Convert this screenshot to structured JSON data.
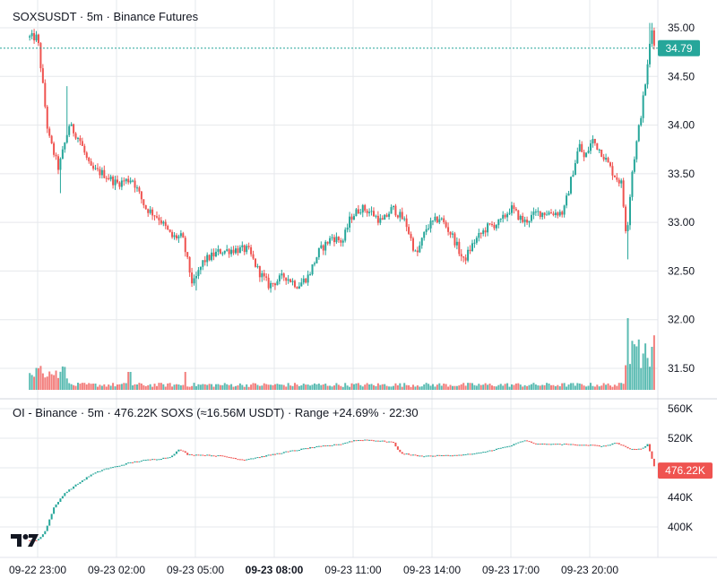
{
  "colors": {
    "up": "#26a69a",
    "down": "#ef5350",
    "grid": "#e6e8ec",
    "text": "#131722",
    "price_label_bg": "#26a69a",
    "oi_label_bg": "#ef5350"
  },
  "main_pane": {
    "legend": "SOXSUSDT · 5m · Binance Futures",
    "current_price_label": "34.79"
  },
  "oi_pane": {
    "legend": "OI - Binance · 5m · 476.22K SOXS (≈16.56M USDT) · Range +24.69% · 22:30",
    "current_label": "476.22K"
  },
  "logo": {
    "icon": "tradingview-logo-icon",
    "text": "TV"
  },
  "chart_data": [
    {
      "type": "candlestick",
      "title": "SOXSUSDT · 5m · Binance Futures",
      "y_ticks": [
        "35.00",
        "34.50",
        "34.00",
        "33.50",
        "33.00",
        "32.50",
        "32.00",
        "31.50"
      ],
      "ylim": [
        31.25,
        35.2
      ],
      "x_ticks": [
        "09-22 23:00",
        "09-23 02:00",
        "09-23 05:00",
        "09-23 08:00",
        "09-23 11:00",
        "09-23 14:00",
        "09-23 17:00",
        "09-23 20:00"
      ],
      "x_tick_hours": [
        0,
        3,
        6,
        9,
        12,
        15,
        18,
        21
      ],
      "x_range_hours": [
        -0.3,
        24.5
      ],
      "last_price": 34.79,
      "close_path": [
        {
          "t": 0.0,
          "p": 34.9
        },
        {
          "t": 0.4,
          "p": 33.9
        },
        {
          "t": 0.8,
          "p": 33.55
        },
        {
          "t": 1.2,
          "p": 34.0
        },
        {
          "t": 1.6,
          "p": 33.85
        },
        {
          "t": 2.0,
          "p": 33.55
        },
        {
          "t": 2.5,
          "p": 33.5
        },
        {
          "t": 3.0,
          "p": 33.4
        },
        {
          "t": 3.6,
          "p": 33.45
        },
        {
          "t": 4.1,
          "p": 33.15
        },
        {
          "t": 4.6,
          "p": 33.05
        },
        {
          "t": 5.1,
          "p": 32.85
        },
        {
          "t": 5.5,
          "p": 32.85
        },
        {
          "t": 5.9,
          "p": 32.35
        },
        {
          "t": 6.3,
          "p": 32.6
        },
        {
          "t": 6.9,
          "p": 32.7
        },
        {
          "t": 7.4,
          "p": 32.72
        },
        {
          "t": 8.0,
          "p": 32.72
        },
        {
          "t": 8.4,
          "p": 32.5
        },
        {
          "t": 8.8,
          "p": 32.35
        },
        {
          "t": 9.4,
          "p": 32.45
        },
        {
          "t": 9.9,
          "p": 32.35
        },
        {
          "t": 10.3,
          "p": 32.45
        },
        {
          "t": 10.7,
          "p": 32.7
        },
        {
          "t": 11.2,
          "p": 32.85
        },
        {
          "t": 11.6,
          "p": 32.8
        },
        {
          "t": 11.9,
          "p": 33.05
        },
        {
          "t": 12.3,
          "p": 33.15
        },
        {
          "t": 12.7,
          "p": 33.1
        },
        {
          "t": 13.1,
          "p": 33.0
        },
        {
          "t": 13.5,
          "p": 33.15
        },
        {
          "t": 14.0,
          "p": 33.0
        },
        {
          "t": 14.4,
          "p": 32.65
        },
        {
          "t": 14.8,
          "p": 32.95
        },
        {
          "t": 15.3,
          "p": 33.05
        },
        {
          "t": 15.8,
          "p": 32.85
        },
        {
          "t": 16.2,
          "p": 32.6
        },
        {
          "t": 16.6,
          "p": 32.8
        },
        {
          "t": 17.1,
          "p": 32.95
        },
        {
          "t": 17.6,
          "p": 33.0
        },
        {
          "t": 18.0,
          "p": 33.15
        },
        {
          "t": 18.5,
          "p": 33.0
        },
        {
          "t": 19.0,
          "p": 33.1
        },
        {
          "t": 19.6,
          "p": 33.1
        },
        {
          "t": 20.0,
          "p": 33.1
        },
        {
          "t": 20.3,
          "p": 33.45
        },
        {
          "t": 20.6,
          "p": 33.8
        },
        {
          "t": 20.8,
          "p": 33.65
        },
        {
          "t": 21.1,
          "p": 33.85
        },
        {
          "t": 21.5,
          "p": 33.7
        },
        {
          "t": 21.9,
          "p": 33.5
        },
        {
          "t": 22.2,
          "p": 33.4
        },
        {
          "t": 22.4,
          "p": 32.85
        },
        {
          "t": 22.6,
          "p": 33.5
        },
        {
          "t": 22.8,
          "p": 33.85
        },
        {
          "t": 23.0,
          "p": 34.2
        },
        {
          "t": 23.2,
          "p": 34.6
        },
        {
          "t": 23.35,
          "p": 35.0
        },
        {
          "t": 23.5,
          "p": 34.79
        }
      ],
      "volume_max": 1.0
    },
    {
      "type": "bar",
      "title": "OI - Binance · 5m",
      "y_ticks": [
        "560K",
        "520K",
        "480K",
        "440K",
        "400K"
      ],
      "ylim": [
        380,
        570
      ],
      "unit": "K",
      "last_value": 476.22,
      "oi_path": [
        {
          "t": 0.0,
          "p": 382
        },
        {
          "t": 0.3,
          "p": 395
        },
        {
          "t": 0.6,
          "p": 425
        },
        {
          "t": 1.0,
          "p": 445
        },
        {
          "t": 1.5,
          "p": 458
        },
        {
          "t": 2.0,
          "p": 470
        },
        {
          "t": 2.5,
          "p": 478
        },
        {
          "t": 3.0,
          "p": 482
        },
        {
          "t": 3.5,
          "p": 487
        },
        {
          "t": 4.0,
          "p": 490
        },
        {
          "t": 5.0,
          "p": 494
        },
        {
          "t": 5.4,
          "p": 505
        },
        {
          "t": 5.7,
          "p": 498
        },
        {
          "t": 6.5,
          "p": 497
        },
        {
          "t": 7.0,
          "p": 496
        },
        {
          "t": 7.8,
          "p": 491
        },
        {
          "t": 8.5,
          "p": 495
        },
        {
          "t": 9.5,
          "p": 502
        },
        {
          "t": 10.5,
          "p": 508
        },
        {
          "t": 11.5,
          "p": 512
        },
        {
          "t": 12.0,
          "p": 517
        },
        {
          "t": 12.5,
          "p": 518
        },
        {
          "t": 13.5,
          "p": 515
        },
        {
          "t": 13.8,
          "p": 500
        },
        {
          "t": 14.5,
          "p": 496
        },
        {
          "t": 16.0,
          "p": 497
        },
        {
          "t": 16.8,
          "p": 500
        },
        {
          "t": 18.0,
          "p": 510
        },
        {
          "t": 18.5,
          "p": 517
        },
        {
          "t": 19.0,
          "p": 512
        },
        {
          "t": 20.0,
          "p": 512
        },
        {
          "t": 21.0,
          "p": 511
        },
        {
          "t": 21.5,
          "p": 509
        },
        {
          "t": 22.0,
          "p": 514
        },
        {
          "t": 22.5,
          "p": 505
        },
        {
          "t": 23.0,
          "p": 506
        },
        {
          "t": 23.2,
          "p": 512
        },
        {
          "t": 23.5,
          "p": 476.22
        }
      ]
    }
  ]
}
